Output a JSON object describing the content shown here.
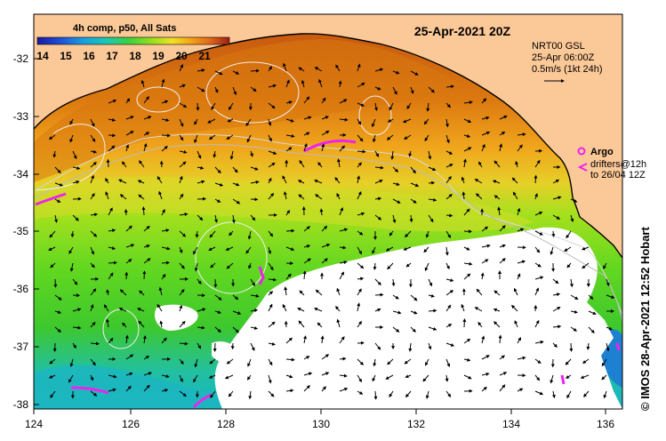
{
  "title": "25-Apr-2021 20Z",
  "colorbar": {
    "label": "4h comp, p50, All Sats",
    "ticks": [
      "14",
      "15",
      "16",
      "17",
      "18",
      "19",
      "20",
      "21"
    ],
    "colors": [
      "#1a1aa0",
      "#1e4fd8",
      "#19a0e0",
      "#1cc8b4",
      "#3ed23a",
      "#9be01e",
      "#f0e028",
      "#f4a418",
      "#e0681a",
      "#c83a18",
      "#a01e14"
    ]
  },
  "current_legend": {
    "line1": "NRT00 GSL",
    "line2": "25-Apr 06:00Z",
    "line3": "0.5m/s (1kt 24h)"
  },
  "argo_legend": {
    "label": "Argo",
    "drifters_line1": "drifters@12h",
    "drifters_line2": "to 26/04 12Z"
  },
  "y_axis": [
    "-32",
    "-33",
    "-34",
    "-35",
    "-36",
    "-37",
    "-38"
  ],
  "x_axis": [
    "124",
    "126",
    "128",
    "130",
    "132",
    "134",
    "136"
  ],
  "credit": "© IMOS 28-Apr-2021 12:52 Hobart",
  "colors": {
    "land": "#fbc898",
    "cloud": "#ffffff",
    "argo": "#ee22ee"
  }
}
